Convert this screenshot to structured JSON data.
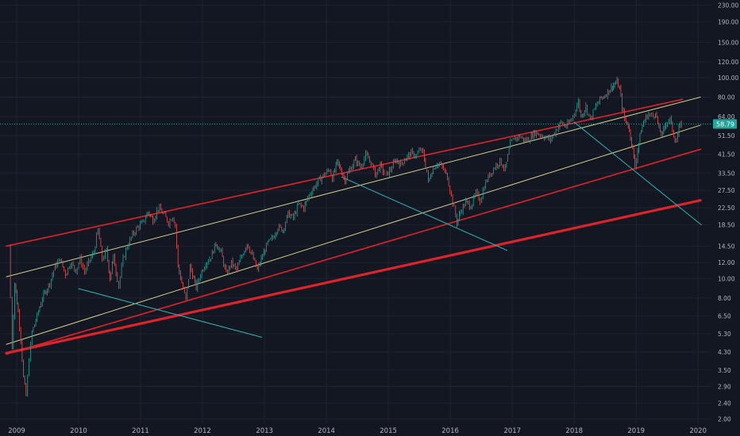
{
  "chart_data": {
    "type": "candlestick",
    "title": "",
    "y_scale": "log",
    "ylim": [
      1.9,
      235
    ],
    "xlim": [
      "2008-11-01",
      "2020-03-15"
    ],
    "y_ticks": [
      "230.00",
      "190.00",
      "150.00",
      "120.00",
      "100.00",
      "80.00",
      "64.00",
      "51.50",
      "41.50",
      "33.50",
      "27.50",
      "22.50",
      "18.50",
      "14.50",
      "12.00",
      "10.00",
      "8.00",
      "6.50",
      "5.30",
      "4.30",
      "3.50",
      "2.90",
      "2.40",
      "2.00"
    ],
    "x_ticks": [
      {
        "label": "2009",
        "x": "2009-01-01"
      },
      {
        "label": "2010",
        "x": "2010-01-01"
      },
      {
        "label": "2011",
        "x": "2011-01-01"
      },
      {
        "label": "2012",
        "x": "2012-01-01"
      },
      {
        "label": "2013",
        "x": "2013-01-01"
      },
      {
        "label": "2014",
        "x": "2014-01-01"
      },
      {
        "label": "2015",
        "x": "2015-01-01"
      },
      {
        "label": "2016",
        "x": "2016-01-01"
      },
      {
        "label": "2017",
        "x": "2017-01-01"
      },
      {
        "label": "2018",
        "x": "2018-01-01"
      },
      {
        "label": "2019",
        "x": "2019-01-01"
      },
      {
        "label": "2020",
        "x": "2020-01-01"
      }
    ],
    "last_price": "58.79",
    "last_price_value": 58.79,
    "price_path": [
      [
        "2008-11-15",
        14.5
      ],
      [
        "2008-11-25",
        8.0
      ],
      [
        "2008-12-05",
        4.6
      ],
      [
        "2008-12-20",
        9.5
      ],
      [
        "2009-01-10",
        6.8
      ],
      [
        "2009-01-25",
        5.0
      ],
      [
        "2009-02-10",
        3.2
      ],
      [
        "2009-02-25",
        2.6
      ],
      [
        "2009-03-15",
        4.0
      ],
      [
        "2009-04-01",
        5.4
      ],
      [
        "2009-05-01",
        6.5
      ],
      [
        "2009-06-01",
        8.0
      ],
      [
        "2009-07-15",
        9.5
      ],
      [
        "2009-08-15",
        11.5
      ],
      [
        "2009-09-15",
        12.5
      ],
      [
        "2009-10-15",
        10.5
      ],
      [
        "2009-11-15",
        12.0
      ],
      [
        "2009-12-15",
        11.0
      ],
      [
        "2010-01-10",
        12.5
      ],
      [
        "2010-02-05",
        10.8
      ],
      [
        "2010-03-01",
        12.0
      ],
      [
        "2010-04-01",
        13.5
      ],
      [
        "2010-04-25",
        17.5
      ],
      [
        "2010-05-20",
        12.5
      ],
      [
        "2010-06-15",
        13.8
      ],
      [
        "2010-07-05",
        10.0
      ],
      [
        "2010-07-25",
        12.8
      ],
      [
        "2010-08-25",
        9.2
      ],
      [
        "2010-09-20",
        12.5
      ],
      [
        "2010-10-15",
        14.5
      ],
      [
        "2010-11-15",
        16.5
      ],
      [
        "2010-12-15",
        18.0
      ],
      [
        "2011-01-15",
        19.0
      ],
      [
        "2011-02-15",
        21.5
      ],
      [
        "2011-03-15",
        19.5
      ],
      [
        "2011-04-15",
        22.5
      ],
      [
        "2011-05-15",
        21.0
      ],
      [
        "2011-06-15",
        19.0
      ],
      [
        "2011-07-10",
        20.5
      ],
      [
        "2011-07-25",
        18.5
      ],
      [
        "2011-08-10",
        11.5
      ],
      [
        "2011-09-01",
        9.5
      ],
      [
        "2011-09-25",
        7.8
      ],
      [
        "2011-10-20",
        11.5
      ],
      [
        "2011-11-25",
        9.0
      ],
      [
        "2011-12-20",
        10.5
      ],
      [
        "2012-01-20",
        12.0
      ],
      [
        "2012-02-20",
        12.8
      ],
      [
        "2012-03-20",
        15.0
      ],
      [
        "2012-04-20",
        13.5
      ],
      [
        "2012-05-20",
        10.5
      ],
      [
        "2012-06-20",
        12.0
      ],
      [
        "2012-07-20",
        11.0
      ],
      [
        "2012-08-20",
        13.0
      ],
      [
        "2012-09-20",
        15.0
      ],
      [
        "2012-10-20",
        13.0
      ],
      [
        "2012-11-20",
        11.0
      ],
      [
        "2012-12-20",
        13.0
      ],
      [
        "2013-01-20",
        15.0
      ],
      [
        "2013-02-20",
        16.0
      ],
      [
        "2013-03-20",
        18.0
      ],
      [
        "2013-04-20",
        17.5
      ],
      [
        "2013-05-20",
        21.0
      ],
      [
        "2013-06-20",
        20.0
      ],
      [
        "2013-07-20",
        23.5
      ],
      [
        "2013-08-20",
        22.5
      ],
      [
        "2013-09-20",
        26.0
      ],
      [
        "2013-10-20",
        28.5
      ],
      [
        "2013-11-20",
        31.0
      ],
      [
        "2013-12-20",
        33.0
      ],
      [
        "2014-01-20",
        35.0
      ],
      [
        "2014-02-05",
        31.5
      ],
      [
        "2014-03-05",
        38.0
      ],
      [
        "2014-04-01",
        34.0
      ],
      [
        "2014-04-20",
        31.0
      ],
      [
        "2014-05-20",
        35.0
      ],
      [
        "2014-06-20",
        39.0
      ],
      [
        "2014-07-20",
        36.0
      ],
      [
        "2014-08-20",
        41.0
      ],
      [
        "2014-09-20",
        38.0
      ],
      [
        "2014-10-15",
        33.0
      ],
      [
        "2014-11-15",
        36.5
      ],
      [
        "2014-12-15",
        32.5
      ],
      [
        "2015-01-15",
        35.0
      ],
      [
        "2015-02-15",
        39.0
      ],
      [
        "2015-03-15",
        37.0
      ],
      [
        "2015-04-15",
        40.0
      ],
      [
        "2015-05-15",
        42.0
      ],
      [
        "2015-06-15",
        41.0
      ],
      [
        "2015-07-10",
        44.0
      ],
      [
        "2015-07-25",
        42.0
      ],
      [
        "2015-08-15",
        34.0
      ],
      [
        "2015-08-25",
        30.0
      ],
      [
        "2015-09-15",
        34.5
      ],
      [
        "2015-10-15",
        37.5
      ],
      [
        "2015-11-15",
        36.0
      ],
      [
        "2015-12-15",
        32.0
      ],
      [
        "2016-01-15",
        24.0
      ],
      [
        "2016-02-10",
        19.0
      ],
      [
        "2016-03-01",
        21.5
      ],
      [
        "2016-04-01",
        24.0
      ],
      [
        "2016-05-01",
        23.0
      ],
      [
        "2016-06-01",
        26.5
      ],
      [
        "2016-06-25",
        24.5
      ],
      [
        "2016-07-20",
        29.0
      ],
      [
        "2016-08-20",
        33.0
      ],
      [
        "2016-09-20",
        36.0
      ],
      [
        "2016-10-20",
        38.5
      ],
      [
        "2016-11-20",
        35.0
      ],
      [
        "2016-12-20",
        47.0
      ],
      [
        "2017-01-15",
        50.0
      ],
      [
        "2017-02-15",
        51.0
      ],
      [
        "2017-03-15",
        48.5
      ],
      [
        "2017-04-15",
        50.0
      ],
      [
        "2017-05-15",
        53.5
      ],
      [
        "2017-06-15",
        52.0
      ],
      [
        "2017-07-15",
        50.5
      ],
      [
        "2017-08-15",
        49.0
      ],
      [
        "2017-09-15",
        55.0
      ],
      [
        "2017-10-15",
        60.0
      ],
      [
        "2017-11-15",
        57.0
      ],
      [
        "2017-12-15",
        62.0
      ],
      [
        "2018-01-10",
        70.0
      ],
      [
        "2018-01-25",
        76.0
      ],
      [
        "2018-02-10",
        64.0
      ],
      [
        "2018-03-10",
        72.0
      ],
      [
        "2018-04-05",
        62.0
      ],
      [
        "2018-05-01",
        70.0
      ],
      [
        "2018-06-01",
        78.0
      ],
      [
        "2018-07-01",
        82.0
      ],
      [
        "2018-08-01",
        88.0
      ],
      [
        "2018-08-20",
        92.0
      ],
      [
        "2018-09-10",
        95.0
      ],
      [
        "2018-09-25",
        88.0
      ],
      [
        "2018-10-10",
        72.0
      ],
      [
        "2018-10-25",
        62.0
      ],
      [
        "2018-11-15",
        58.0
      ],
      [
        "2018-12-05",
        48.0
      ],
      [
        "2018-12-25",
        36.0
      ],
      [
        "2019-01-10",
        44.0
      ],
      [
        "2019-01-30",
        55.0
      ],
      [
        "2019-02-20",
        62.0
      ],
      [
        "2019-03-15",
        66.0
      ],
      [
        "2019-04-10",
        64.0
      ],
      [
        "2019-04-25",
        68.0
      ],
      [
        "2019-05-15",
        55.0
      ],
      [
        "2019-06-05",
        52.0
      ],
      [
        "2019-06-25",
        60.0
      ],
      [
        "2019-07-20",
        62.0
      ],
      [
        "2019-08-10",
        52.0
      ],
      [
        "2019-08-25",
        48.0
      ],
      [
        "2019-09-10",
        56.0
      ],
      [
        "2019-09-25",
        58.79
      ]
    ],
    "trendlines": [
      {
        "color": "#e0222a",
        "style": "channel-upper",
        "from": [
          "2008-11-01",
          14.5
        ],
        "to": [
          "2019-10-01",
          78.0
        ]
      },
      {
        "color": "#e0222a",
        "style": "channel-lower",
        "from": [
          "2008-11-01",
          4.2
        ],
        "to": [
          "2020-01-15",
          44.0
        ]
      },
      {
        "color": "#e0222a",
        "style": "main-support-thick",
        "from": [
          "2008-11-01",
          4.25
        ],
        "to": [
          "2020-01-15",
          24.5
        ]
      },
      {
        "color": "#d4ce8c",
        "style": "midline-upper",
        "from": [
          "2008-11-01",
          10.2
        ],
        "to": [
          "2020-01-15",
          80.0
        ]
      },
      {
        "color": "#d4ce8c",
        "style": "midline-lower",
        "from": [
          "2008-11-01",
          4.7
        ],
        "to": [
          "2020-01-15",
          58.0
        ]
      },
      {
        "color": "#2fb3b3",
        "style": "decline",
        "from": [
          "2010-01-01",
          8.9
        ],
        "to": [
          "2012-12-15",
          5.1
        ]
      },
      {
        "color": "#2fb3b3",
        "style": "decline",
        "from": [
          "2014-04-01",
          32.0
        ],
        "to": [
          "2016-12-01",
          13.8
        ]
      },
      {
        "color": "#2fb3b3",
        "style": "decline",
        "from": [
          "2018-01-01",
          60.0
        ],
        "to": [
          "2020-01-20",
          18.5
        ]
      }
    ]
  }
}
